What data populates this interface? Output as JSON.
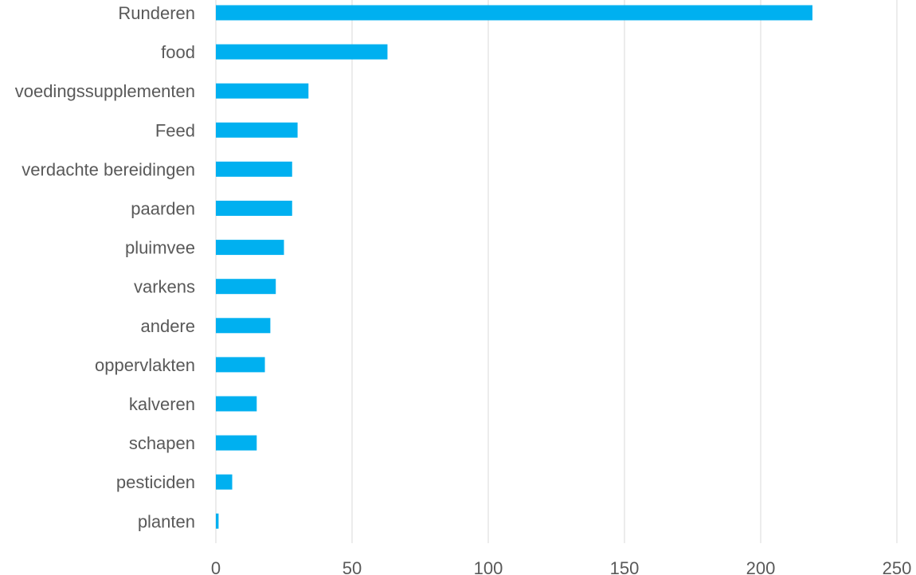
{
  "chart_data": {
    "type": "bar",
    "orientation": "horizontal",
    "title": "",
    "xlabel": "",
    "ylabel": "",
    "categories": [
      "Runderen",
      "food",
      "voedingssupplementen",
      "Feed",
      "verdachte bereidingen",
      "paarden",
      "pluimvee",
      "varkens",
      "andere",
      "oppervlakten",
      "kalveren",
      "schapen",
      "pesticiden",
      "planten"
    ],
    "values": [
      219,
      63,
      34,
      30,
      28,
      28,
      25,
      22,
      20,
      18,
      15,
      15,
      6,
      1
    ],
    "xlim": [
      0,
      250
    ],
    "xticks": [
      0,
      50,
      100,
      150,
      200,
      250
    ],
    "grid": true,
    "legend": "none",
    "bar_color": "#00b0f0"
  }
}
